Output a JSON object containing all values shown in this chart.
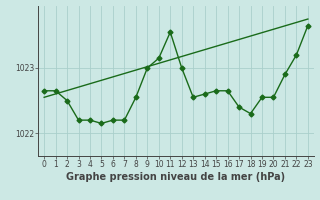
{
  "x": [
    0,
    1,
    2,
    3,
    4,
    5,
    6,
    7,
    8,
    9,
    10,
    11,
    12,
    13,
    14,
    15,
    16,
    17,
    18,
    19,
    20,
    21,
    22,
    23
  ],
  "pressure": [
    1022.65,
    1022.65,
    1022.5,
    1022.2,
    1022.2,
    1022.15,
    1022.2,
    1022.2,
    1022.55,
    1023.0,
    1023.15,
    1023.55,
    1023.0,
    1022.55,
    1022.6,
    1022.65,
    1022.65,
    1022.4,
    1022.3,
    1022.55,
    1022.55,
    1022.9,
    1023.2,
    1023.65
  ],
  "trend_x": [
    0,
    23
  ],
  "trend_y": [
    1022.55,
    1023.75
  ],
  "line_color": "#1a6b1a",
  "bg_color": "#cce8e4",
  "grid_color": "#aacfcb",
  "axis_color": "#444444",
  "ylabel_ticks": [
    1022,
    1023
  ],
  "ylim": [
    1021.65,
    1023.95
  ],
  "xlim": [
    -0.5,
    23.5
  ],
  "xlabel": "Graphe pression niveau de la mer (hPa)",
  "xlabel_fontsize": 7,
  "tick_fontsize": 5.5,
  "marker": "D",
  "marker_size": 2.5,
  "linewidth": 1.0
}
